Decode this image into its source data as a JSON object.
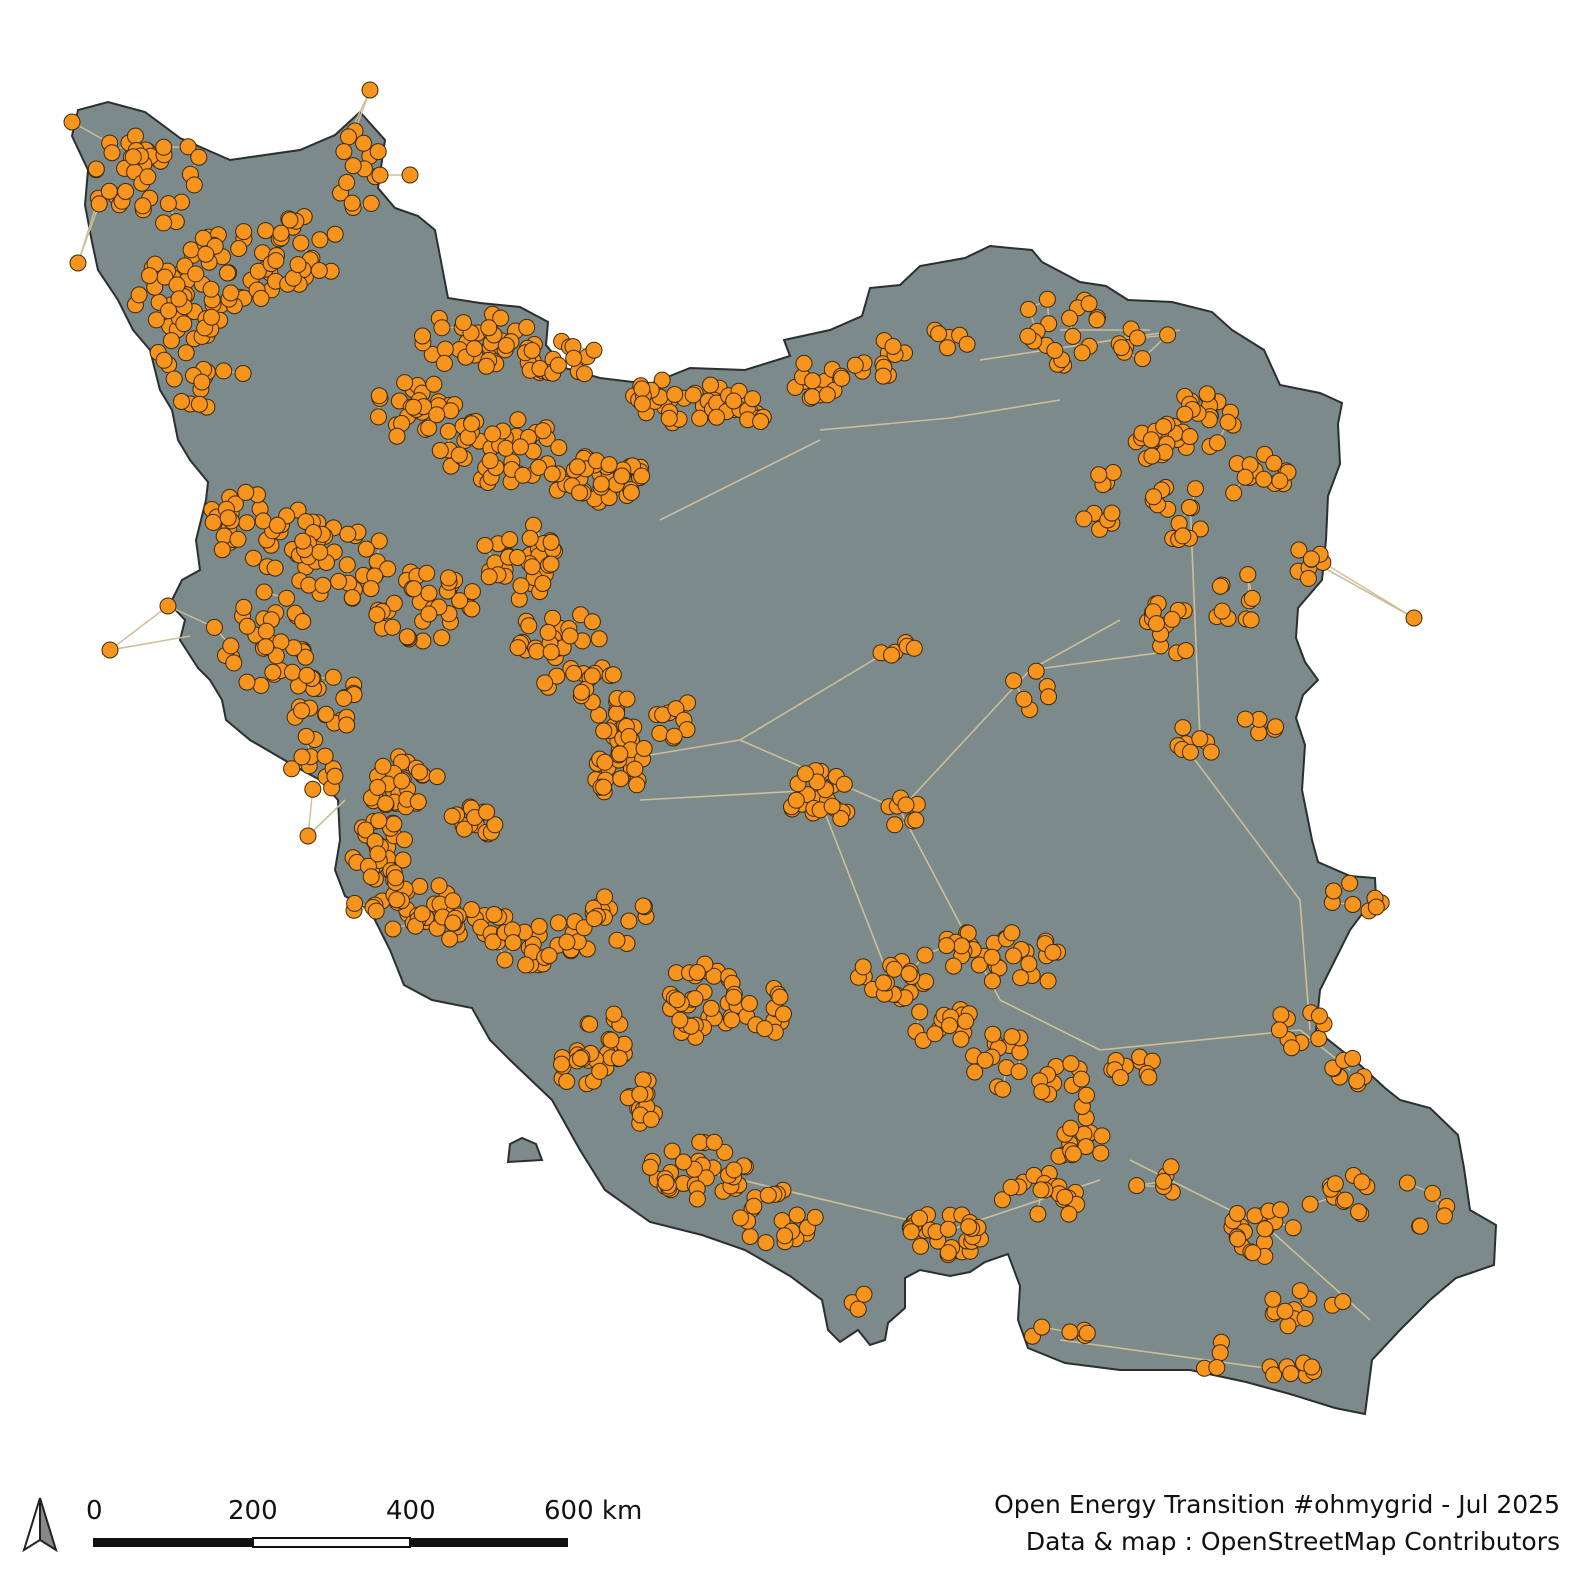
{
  "map": {
    "country_fill": "#7c8a8c",
    "border_color": "#2a2f30",
    "line_color": "#cdbf97",
    "node_fill": "#f7941d",
    "node_stroke": "#3a2a10"
  },
  "scale_bar": {
    "labels": [
      "0",
      "200",
      "400",
      "600 km"
    ]
  },
  "credits": {
    "line1": "Open Energy Transition #ohmygrid - Jul 2025",
    "line2": "Data & map : OpenStreetMap Contributors"
  },
  "north_arrow": {
    "icon": "north-arrow-icon"
  }
}
